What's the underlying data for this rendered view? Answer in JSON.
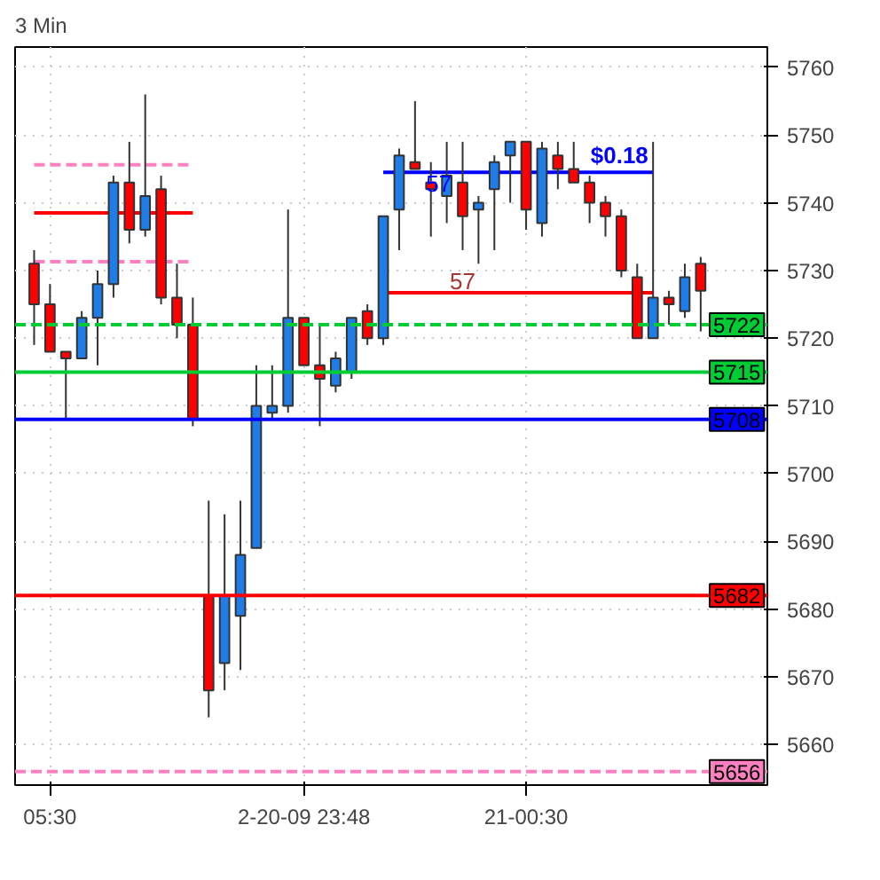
{
  "chart_data": {
    "type": "candlestick",
    "title": "3 Min",
    "categories": [
      null,
      "05:30",
      null,
      null,
      null,
      null,
      null,
      null,
      null,
      null,
      null,
      null,
      null,
      null,
      null,
      null,
      null,
      "2-20-09 23:48",
      null,
      null,
      null,
      null,
      null,
      null,
      null,
      null,
      null,
      null,
      null,
      null,
      null,
      "21-00:30",
      null,
      null,
      null,
      null,
      null,
      null,
      null,
      null,
      null,
      null,
      null
    ],
    "ohlc": [
      [
        5731,
        5733,
        5719,
        5725
      ],
      [
        5725,
        5728,
        5718,
        5718
      ],
      [
        5718,
        5718,
        5708,
        5717
      ],
      [
        5717,
        5724,
        5717,
        5723
      ],
      [
        5723,
        5730,
        5716,
        5728
      ],
      [
        5728,
        5744,
        5726,
        5743
      ],
      [
        5743,
        5749,
        5734,
        5736
      ],
      [
        5736,
        5756,
        5735,
        5741
      ],
      [
        5742,
        5744,
        5725,
        5726
      ],
      [
        5726,
        5731,
        5720,
        5722
      ],
      [
        5722,
        5726,
        5707,
        5708
      ],
      [
        5682,
        5696,
        5664,
        5668
      ],
      [
        5672,
        5694,
        5668,
        5682
      ],
      [
        5679,
        5696,
        5671,
        5688
      ],
      [
        5689,
        5716,
        5689,
        5710
      ],
      [
        5709,
        5716,
        5708,
        5710
      ],
      [
        5710,
        5739,
        5709,
        5723
      ],
      [
        5723,
        5723,
        5716,
        5716
      ],
      [
        5716,
        5722,
        5707,
        5714
      ],
      [
        5713,
        5718,
        5712,
        5717
      ],
      [
        5715,
        5723,
        5714,
        5723
      ],
      [
        5724,
        5725,
        5719,
        5720
      ],
      [
        5720,
        5738,
        5719,
        5738
      ],
      [
        5739,
        5748,
        5733,
        5747
      ],
      [
        5746,
        5755,
        5745,
        5745
      ],
      [
        5743,
        5746,
        5735,
        5742
      ],
      [
        5741,
        5749,
        5737,
        5744
      ],
      [
        5743,
        5749,
        5733,
        5738
      ],
      [
        5739,
        5741,
        5731,
        5740
      ],
      [
        5742,
        5747,
        5733,
        5746
      ],
      [
        5747,
        5749,
        5740,
        5749
      ],
      [
        5749,
        5749,
        5736,
        5739
      ],
      [
        5737,
        5749,
        5735,
        5748
      ],
      [
        5747,
        5749,
        5742,
        5745
      ],
      [
        5745,
        5749,
        5743,
        5743
      ],
      [
        5743,
        5744,
        5737,
        5740
      ],
      [
        5740,
        5741,
        5735,
        5738
      ],
      [
        5738,
        5739,
        5729,
        5730
      ],
      [
        5729,
        5731,
        5720,
        5720
      ],
      [
        5720,
        5749,
        5720,
        5726
      ],
      [
        5726,
        5727,
        5722,
        5725
      ],
      [
        5724,
        5731,
        5723,
        5729
      ],
      [
        5731,
        5732,
        5721,
        5727
      ]
    ],
    "series": [
      {
        "type": "line",
        "color": "#ff0000",
        "values": [
          5738.5,
          5738.5,
          5738.5,
          5738.5,
          5738.5,
          5738.5,
          5738.5,
          5738.5,
          5738.5,
          5738.5,
          5738.5,
          null,
          null,
          null,
          null,
          null,
          null,
          null,
          null,
          null,
          null,
          null,
          null,
          null,
          null,
          null,
          null,
          null,
          null,
          null,
          null,
          null,
          null,
          null,
          null,
          null,
          null,
          null,
          null,
          null,
          null,
          null,
          null
        ]
      },
      {
        "type": "line",
        "color": "#ff80c0",
        "line_style": "dashed",
        "values": [
          5745.6,
          5745.6,
          5745.6,
          5745.6,
          5745.6,
          5745.6,
          5745.6,
          5745.6,
          5745.6,
          5745.6,
          5745.6,
          null,
          null,
          null,
          null,
          null,
          null,
          null,
          null,
          null,
          null,
          null,
          null,
          null,
          null,
          null,
          null,
          null,
          null,
          null,
          null,
          null,
          null,
          null,
          null,
          null,
          null,
          null,
          null,
          null,
          null,
          null,
          null
        ]
      },
      {
        "type": "line",
        "color": "#ff80c0",
        "line_style": "dashed",
        "values": [
          5731.3,
          5731.3,
          5731.3,
          5731.3,
          5731.3,
          5731.3,
          5731.3,
          5731.3,
          5731.3,
          5731.3,
          5731.3,
          null,
          null,
          null,
          null,
          null,
          null,
          null,
          null,
          null,
          null,
          null,
          null,
          null,
          null,
          null,
          null,
          null,
          null,
          null,
          null,
          null,
          null,
          null,
          null,
          null,
          null,
          null,
          null,
          null,
          null,
          null,
          null
        ]
      },
      {
        "type": "line",
        "color": "#0000ff",
        "values": [
          null,
          null,
          null,
          null,
          null,
          null,
          null,
          null,
          null,
          null,
          null,
          null,
          null,
          null,
          null,
          null,
          null,
          null,
          null,
          null,
          null,
          null,
          5744.5,
          5744.5,
          5744.5,
          5744.5,
          5744.5,
          5744.5,
          5744.5,
          5744.5,
          5744.5,
          5744.5,
          5744.5,
          5744.5,
          5744.5,
          5744.5,
          5744.5,
          5744.5,
          5744.5,
          5744.5,
          null,
          null,
          null
        ]
      },
      {
        "type": "line",
        "color": "#ff0000",
        "values": [
          null,
          null,
          null,
          null,
          null,
          null,
          null,
          null,
          null,
          null,
          null,
          null,
          null,
          null,
          null,
          null,
          null,
          null,
          null,
          null,
          null,
          null,
          5726.7,
          5726.7,
          5726.7,
          5726.7,
          5726.7,
          5726.7,
          5726.7,
          5726.7,
          5726.7,
          5726.7,
          5726.7,
          5726.7,
          5726.7,
          5726.7,
          5726.7,
          5726.7,
          5726.7,
          5726.7,
          null,
          null,
          null
        ]
      }
    ],
    "ref_lines": [
      {
        "axis": "y",
        "value": 5722,
        "label": "5722",
        "color": "#00cc33",
        "line_style": "dashed"
      },
      {
        "axis": "y",
        "value": 5715,
        "label": "5715",
        "color": "#00cc33"
      },
      {
        "axis": "y",
        "value": 5708,
        "label": "5708",
        "color": "#0000ff"
      },
      {
        "axis": "y",
        "value": 5682,
        "label": "5682",
        "color": "#ff0000"
      },
      {
        "axis": "y",
        "value": 5656,
        "label": "5656",
        "color": "#ff80c0",
        "line_style": "dashed"
      }
    ],
    "annotations": [
      "$0.18",
      "57",
      "57"
    ],
    "ylim": [
      5654,
      5763
    ],
    "yticks": [
      5660,
      5670,
      5680,
      5690,
      5700,
      5710,
      5720,
      5730,
      5740,
      5750,
      5760
    ],
    "grid": true
  }
}
